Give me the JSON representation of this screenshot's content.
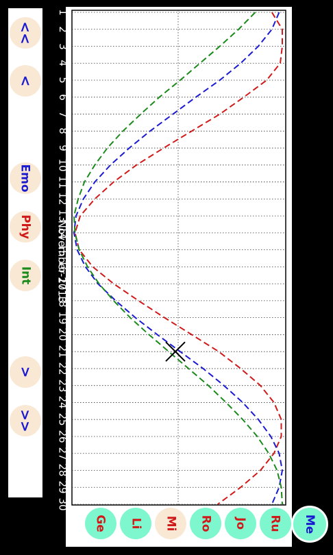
{
  "nav": {
    "prev_fast": "<<",
    "prev": "<",
    "next": ">",
    "next_fast": ">>"
  },
  "cycles": [
    {
      "key": "emo",
      "label": "Emo",
      "color": "#1a1ad0"
    },
    {
      "key": "phy",
      "label": "Phy",
      "color": "#d01a1a"
    },
    {
      "key": "int",
      "label": "Int",
      "color": "#1a8a1a"
    }
  ],
  "month": "November-2013",
  "people": [
    {
      "label": "Ge",
      "selected": false
    },
    {
      "label": "Li",
      "selected": false
    },
    {
      "label": "Mi",
      "selected": true
    },
    {
      "label": "Ro",
      "selected": false
    },
    {
      "label": "Jo",
      "selected": false
    },
    {
      "label": "Ru",
      "selected": false
    }
  ],
  "me": {
    "label": "Me"
  },
  "chart_data": {
    "type": "line",
    "x": [
      1,
      2,
      3,
      4,
      5,
      6,
      7,
      8,
      9,
      10,
      11,
      12,
      13,
      14,
      15,
      16,
      17,
      18,
      19,
      20,
      21,
      22,
      23,
      24,
      25,
      26,
      27,
      28,
      29,
      30
    ],
    "ylim": [
      -1,
      1
    ],
    "series": [
      {
        "name": "Phy",
        "color": "#d01a1a",
        "values": [
          0.9,
          1.0,
          1.0,
          0.98,
          0.85,
          0.63,
          0.4,
          0.13,
          -0.14,
          -0.4,
          -0.62,
          -0.8,
          -0.94,
          -0.99,
          -0.95,
          -0.82,
          -0.62,
          -0.38,
          -0.13,
          0.13,
          0.39,
          0.6,
          0.79,
          0.92,
          0.99,
          0.99,
          0.92,
          0.79,
          0.6,
          0.38
        ]
      },
      {
        "name": "Emo",
        "color": "#1a1ad0",
        "values": [
          0.97,
          0.9,
          0.77,
          0.6,
          0.4,
          0.17,
          -0.05,
          -0.27,
          -0.47,
          -0.65,
          -0.8,
          -0.91,
          -0.98,
          -1.0,
          -0.97,
          -0.89,
          -0.77,
          -0.6,
          -0.41,
          -0.2,
          0.02,
          0.24,
          0.44,
          0.62,
          0.77,
          0.89,
          0.97,
          1.0,
          0.97,
          0.9
        ]
      },
      {
        "name": "Int",
        "color": "#1a8a1a",
        "values": [
          0.74,
          0.58,
          0.4,
          0.21,
          0.02,
          -0.18,
          -0.36,
          -0.53,
          -0.68,
          -0.8,
          -0.9,
          -0.96,
          -1.0,
          -0.99,
          -0.95,
          -0.87,
          -0.76,
          -0.62,
          -0.46,
          -0.28,
          -0.09,
          0.1,
          0.29,
          0.46,
          0.62,
          0.76,
          0.87,
          0.95,
          0.99,
          1.0
        ]
      }
    ],
    "marker_day": 21,
    "grid": true
  }
}
